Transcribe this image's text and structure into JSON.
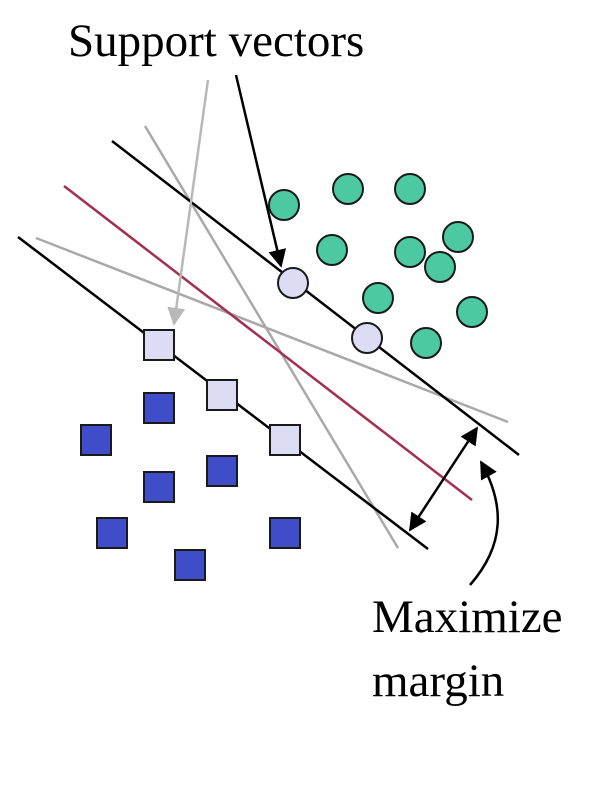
{
  "labels": {
    "support_vectors": "Support vectors",
    "maximize_line1": "Maximize",
    "maximize_line2": "margin"
  },
  "colors": {
    "circle_class": "#4cc9a0",
    "square_class": "#3f4dc9",
    "support_vector_fill": "#dcdcf5",
    "optimal_hyperplane": "#a2304e",
    "alternative_hyperplane": "#a9a9a9",
    "margin_line": "#000000"
  },
  "icons": {
    "circle_point": "circle-point-icon",
    "square_point": "square-point-icon",
    "arrow": "arrow-icon"
  }
}
